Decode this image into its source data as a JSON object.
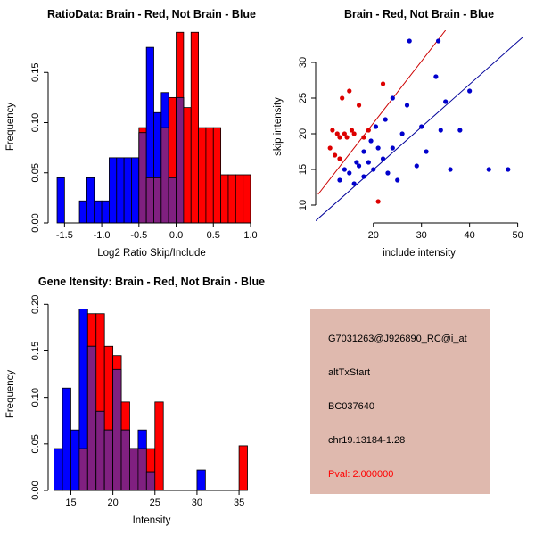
{
  "info": {
    "bg": "#dfb9ae",
    "lines": [
      "G7031263@J926890_RC@i_at",
      "altTxStart",
      "BC037640",
      "chr19.13184-1.28"
    ],
    "pval": "Pval: 2.000000",
    "pval_color": "#ff0000"
  },
  "chart_data": [
    {
      "id": "hist-ratio",
      "type": "bar",
      "title": "RatioData: Brain - Red, Not Brain - Blue",
      "xlabel": "Log2 Ratio Skip/Include",
      "ylabel": "Frequency",
      "xlim": [
        -1.72,
        1.06
      ],
      "ylim": [
        0,
        0.192
      ],
      "xticks": [
        "-1.5",
        "-1.0",
        "-0.5",
        "0.0",
        "0.5",
        "1.0"
      ],
      "yticks": [
        "0.00",
        "0.05",
        "0.10",
        "0.15"
      ],
      "bin_start": -1.6,
      "bin_width": 0.1,
      "series": [
        {
          "name": "Not Brain (blue)",
          "values": [
            0.045,
            0,
            0,
            0.022,
            0.045,
            0.022,
            0.022,
            0.065,
            0.065,
            0.065,
            0.065,
            0.09,
            0.175,
            0.11,
            0.13,
            0.045,
            0.125,
            0,
            0,
            0,
            0,
            0,
            0,
            0,
            0,
            0
          ]
        },
        {
          "name": "Brain (red)",
          "values": [
            0,
            0,
            0,
            0,
            0,
            0,
            0,
            0,
            0,
            0,
            0,
            0.095,
            0.045,
            0.045,
            0.095,
            0.125,
            0.19,
            0.115,
            0.19,
            0.095,
            0.095,
            0.095,
            0.048,
            0.048,
            0.048,
            0.048
          ]
        }
      ],
      "colors": {
        "red": "#ff0000",
        "blue": "#0000ff",
        "overlap": "#802080"
      }
    },
    {
      "id": "scatter-intensity",
      "type": "scatter",
      "title": "Brain - Red, Not Brain - Blue",
      "xlabel": "include intensity",
      "ylabel": "skip intensity",
      "xlim": [
        8,
        51
      ],
      "ylim": [
        7.5,
        34.5
      ],
      "xticks": [
        "20",
        "30",
        "40",
        "50"
      ],
      "yticks": [
        "10",
        "15",
        "20",
        "25",
        "30"
      ],
      "red_points": [
        [
          11,
          18
        ],
        [
          11.5,
          20.5
        ],
        [
          12,
          17
        ],
        [
          12.5,
          20
        ],
        [
          13,
          19.5
        ],
        [
          13,
          16.5
        ],
        [
          13.5,
          25
        ],
        [
          14,
          20
        ],
        [
          14.5,
          19.5
        ],
        [
          15,
          26
        ],
        [
          15.5,
          20.5
        ],
        [
          16,
          20
        ],
        [
          17,
          24
        ],
        [
          18,
          19.5
        ],
        [
          19,
          20.5
        ],
        [
          21,
          10.5
        ],
        [
          22,
          27
        ]
      ],
      "blue_points": [
        [
          13,
          13.5
        ],
        [
          14,
          15
        ],
        [
          15,
          14.5
        ],
        [
          16,
          13
        ],
        [
          16.5,
          16
        ],
        [
          17,
          15.5
        ],
        [
          18,
          14
        ],
        [
          18,
          17.5
        ],
        [
          19,
          16
        ],
        [
          19.5,
          19
        ],
        [
          20,
          15
        ],
        [
          20.5,
          21
        ],
        [
          21,
          18
        ],
        [
          22,
          16.5
        ],
        [
          22.5,
          22
        ],
        [
          23,
          14.5
        ],
        [
          24,
          18
        ],
        [
          24,
          25
        ],
        [
          25,
          13.5
        ],
        [
          26,
          20
        ],
        [
          27,
          24
        ],
        [
          27.5,
          33
        ],
        [
          29,
          15.5
        ],
        [
          30,
          21
        ],
        [
          31,
          17.5
        ],
        [
          33,
          28
        ],
        [
          33.5,
          33
        ],
        [
          34,
          20.5
        ],
        [
          35,
          24.5
        ],
        [
          36,
          15
        ],
        [
          38,
          20.5
        ],
        [
          40,
          26
        ],
        [
          44,
          15
        ],
        [
          48,
          15
        ]
      ],
      "red_line": {
        "x1": 8.5,
        "y1": 11.5,
        "x2": 35,
        "y2": 34.5
      },
      "blue_line": {
        "x1": 8,
        "y1": 7.8,
        "x2": 51,
        "y2": 33.5
      },
      "colors": {
        "red": "#dd0000",
        "blue": "#0000cc",
        "red_line": "#cc0000",
        "blue_line": "#000099"
      }
    },
    {
      "id": "hist-gene-intensity",
      "type": "bar",
      "title": "Gene Itensity: Brain - Red, Not Brain - Blue",
      "xlabel": "Intensity",
      "ylabel": "Frequency",
      "xlim": [
        12.3,
        36.9
      ],
      "ylim": [
        0,
        0.207
      ],
      "xticks": [
        "15",
        "20",
        "25",
        "30",
        "35"
      ],
      "yticks": [
        "0.00",
        "0.05",
        "0.10",
        "0.15",
        "0.20"
      ],
      "bin_start": 13,
      "bin_width": 1,
      "series": [
        {
          "name": "Not Brain (blue)",
          "values": [
            0.045,
            0.11,
            0.065,
            0.195,
            0.155,
            0.085,
            0.065,
            0.13,
            0.065,
            0.045,
            0.065,
            0.02,
            0,
            0,
            0,
            0,
            0,
            0.022,
            0,
            0,
            0,
            0,
            0
          ]
        },
        {
          "name": "Brain (red)",
          "values": [
            0,
            0,
            0,
            0.045,
            0.19,
            0.19,
            0.155,
            0.145,
            0.095,
            0.045,
            0.045,
            0.045,
            0.095,
            0,
            0,
            0,
            0,
            0,
            0,
            0,
            0,
            0,
            0.048
          ]
        }
      ],
      "colors": {
        "red": "#ff0000",
        "blue": "#0000ff",
        "overlap": "#802080"
      }
    }
  ]
}
